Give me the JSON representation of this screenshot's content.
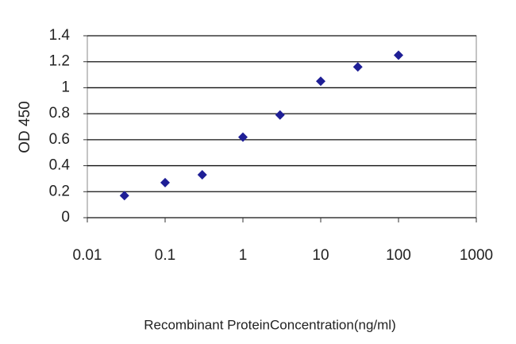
{
  "chart_data": {
    "type": "line",
    "x_label": "Recombinant ProteinConcentration(ng/ml)",
    "y_label": "OD 450",
    "x": [
      0.03,
      0.1,
      0.3,
      1,
      3,
      10,
      30,
      100
    ],
    "series": [
      {
        "color": "#1f1f96",
        "values": [
          0.17,
          0.27,
          0.33,
          0.62,
          0.79,
          1.05,
          1.16,
          1.25
        ]
      }
    ],
    "xlog": true,
    "xlim": [
      0.01,
      1000
    ],
    "xticks": [
      0.01,
      0.1,
      1,
      10,
      100,
      1000
    ],
    "ylim": [
      0,
      1.4
    ],
    "yticks": [
      0,
      0.2,
      0.4,
      0.6,
      0.8,
      1,
      1.2,
      1.4
    ],
    "grid": true
  }
}
